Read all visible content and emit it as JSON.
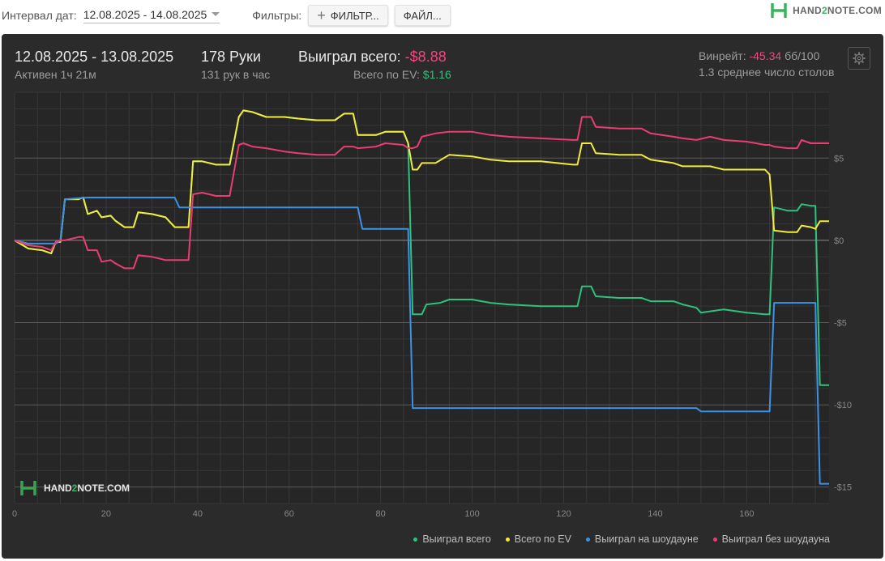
{
  "toolbar": {
    "date_interval_label": "Интервал дат:",
    "date_interval_value": "12.08.2025 - 14.08.2025",
    "filters_label": "Фильтры:",
    "filter_button": "ФИЛЬТР...",
    "file_button": "ФАЙЛ..."
  },
  "logo": {
    "part1": "HAND",
    "part2": "2",
    "part3": "NOTE.COM"
  },
  "summary": {
    "date_range": "12.08.2025 - 13.08.2025",
    "active": "Активен 1ч 21м",
    "hands": "178 Руки",
    "hands_per_hour": "131 рук в час",
    "won_total_label": "Выиграл всего:",
    "won_total_value": "-$8.88",
    "ev_label": "Всего по EV:",
    "ev_value": "$1.16",
    "winrate_label": "Винрейт:",
    "winrate_value": "-45.34",
    "winrate_unit": "бб/100",
    "avg_tables": "1.3 среднее число столов"
  },
  "watermark": {
    "part1": "HAND",
    "part2": "2",
    "part3": "NOTE.COM"
  },
  "colors": {
    "green": "#2ec27e",
    "yellow": "#f2ea3c",
    "blue": "#3b92e6",
    "pink": "#ea3d72"
  },
  "chart_data": {
    "type": "line",
    "xlabel": "",
    "ylabel": "",
    "xlim": [
      0,
      178
    ],
    "ylim": [
      -16,
      9
    ],
    "x_ticks": [
      0,
      20,
      40,
      60,
      80,
      100,
      120,
      140,
      160
    ],
    "y_ticks": [
      5,
      0,
      -5,
      -10,
      -15
    ],
    "y_tick_labels": [
      "$5",
      "$0",
      "-$5",
      "-$10",
      "-$15"
    ],
    "grid": true,
    "legend_position": "bottom-right",
    "series": [
      {
        "name": "Выиграл всего",
        "color": "#2ec27e",
        "points": [
          [
            0,
            0
          ],
          [
            3,
            -0.5
          ],
          [
            6,
            -0.6
          ],
          [
            8,
            -0.8
          ],
          [
            9,
            -0.1
          ],
          [
            10,
            -0.1
          ],
          [
            11,
            2.5
          ],
          [
            14,
            2.5
          ],
          [
            15,
            2.6
          ],
          [
            16,
            1.6
          ],
          [
            18,
            1.8
          ],
          [
            19,
            1.4
          ],
          [
            21,
            1.5
          ],
          [
            22,
            1.2
          ],
          [
            24,
            0.8
          ],
          [
            26,
            0.8
          ],
          [
            27,
            1.7
          ],
          [
            30,
            1.6
          ],
          [
            33,
            1.4
          ],
          [
            35,
            0.8
          ],
          [
            38,
            0.8
          ],
          [
            39,
            4.8
          ],
          [
            41,
            4.8
          ],
          [
            44,
            4.6
          ],
          [
            47,
            4.6
          ],
          [
            49,
            7.5
          ],
          [
            50,
            7.9
          ],
          [
            52,
            7.8
          ],
          [
            55,
            7.5
          ],
          [
            59,
            7.5
          ],
          [
            62,
            7.4
          ],
          [
            66,
            7.3
          ],
          [
            70,
            7.3
          ],
          [
            72,
            7.7
          ],
          [
            74,
            7.7
          ],
          [
            75,
            6.4
          ],
          [
            79,
            6.4
          ],
          [
            81,
            6.6
          ],
          [
            85,
            6.6
          ],
          [
            86,
            5.9
          ],
          [
            87,
            -4.5
          ],
          [
            89,
            -4.5
          ],
          [
            90,
            -3.9
          ],
          [
            93,
            -3.8
          ],
          [
            95,
            -3.6
          ],
          [
            100,
            -3.6
          ],
          [
            104,
            -3.8
          ],
          [
            108,
            -3.9
          ],
          [
            115,
            -4.0
          ],
          [
            122,
            -4.0
          ],
          [
            123,
            -4.0
          ],
          [
            124,
            -2.8
          ],
          [
            126,
            -2.8
          ],
          [
            127,
            -3.4
          ],
          [
            132,
            -3.5
          ],
          [
            137,
            -3.5
          ],
          [
            139,
            -3.7
          ],
          [
            144,
            -3.7
          ],
          [
            146,
            -3.9
          ],
          [
            149,
            -4.1
          ],
          [
            150,
            -4.4
          ],
          [
            155,
            -4.2
          ],
          [
            160,
            -4.4
          ],
          [
            164,
            -4.5
          ],
          [
            165,
            -4.5
          ],
          [
            166,
            2.0
          ],
          [
            169,
            1.8
          ],
          [
            171,
            1.8
          ],
          [
            172,
            2.2
          ],
          [
            174,
            2.1
          ],
          [
            175,
            2.1
          ],
          [
            176,
            -8.8
          ],
          [
            178,
            -8.8
          ]
        ]
      },
      {
        "name": "Всего по EV",
        "color": "#f2ea3c",
        "points": [
          [
            0,
            0
          ],
          [
            3,
            -0.5
          ],
          [
            6,
            -0.6
          ],
          [
            8,
            -0.8
          ],
          [
            9,
            -0.1
          ],
          [
            10,
            -0.1
          ],
          [
            11,
            2.5
          ],
          [
            14,
            2.5
          ],
          [
            15,
            2.6
          ],
          [
            16,
            1.6
          ],
          [
            18,
            1.8
          ],
          [
            19,
            1.4
          ],
          [
            21,
            1.5
          ],
          [
            22,
            1.2
          ],
          [
            24,
            0.8
          ],
          [
            26,
            0.8
          ],
          [
            27,
            1.7
          ],
          [
            30,
            1.6
          ],
          [
            33,
            1.4
          ],
          [
            35,
            0.8
          ],
          [
            38,
            0.8
          ],
          [
            39,
            4.8
          ],
          [
            41,
            4.8
          ],
          [
            44,
            4.6
          ],
          [
            47,
            4.6
          ],
          [
            49,
            7.5
          ],
          [
            50,
            7.9
          ],
          [
            52,
            7.8
          ],
          [
            55,
            7.5
          ],
          [
            59,
            7.5
          ],
          [
            62,
            7.4
          ],
          [
            66,
            7.3
          ],
          [
            70,
            7.3
          ],
          [
            72,
            7.7
          ],
          [
            74,
            7.7
          ],
          [
            75,
            6.4
          ],
          [
            79,
            6.4
          ],
          [
            81,
            6.6
          ],
          [
            85,
            6.6
          ],
          [
            86,
            5.9
          ],
          [
            87,
            4.3
          ],
          [
            88,
            4.3
          ],
          [
            89,
            4.7
          ],
          [
            92,
            4.7
          ],
          [
            95,
            5.2
          ],
          [
            100,
            5.1
          ],
          [
            104,
            4.9
          ],
          [
            108,
            4.8
          ],
          [
            115,
            4.8
          ],
          [
            122,
            4.6
          ],
          [
            123,
            4.6
          ],
          [
            124,
            5.9
          ],
          [
            126,
            5.9
          ],
          [
            127,
            5.3
          ],
          [
            132,
            5.2
          ],
          [
            137,
            5.2
          ],
          [
            139,
            4.9
          ],
          [
            144,
            4.7
          ],
          [
            146,
            4.5
          ],
          [
            149,
            4.5
          ],
          [
            152,
            4.5
          ],
          [
            155,
            4.3
          ],
          [
            160,
            4.3
          ],
          [
            164,
            4.3
          ],
          [
            165,
            4.0
          ],
          [
            166,
            0.6
          ],
          [
            169,
            0.5
          ],
          [
            171,
            0.5
          ],
          [
            172,
            0.9
          ],
          [
            174,
            0.8
          ],
          [
            175,
            0.7
          ],
          [
            176,
            1.16
          ],
          [
            178,
            1.16
          ]
        ]
      },
      {
        "name": "Выиграл на шоудауне",
        "color": "#3b92e6",
        "points": [
          [
            0,
            0
          ],
          [
            3,
            -0.2
          ],
          [
            9,
            -0.2
          ],
          [
            10,
            0
          ],
          [
            11,
            2.5
          ],
          [
            16,
            2.6
          ],
          [
            35,
            2.6
          ],
          [
            36,
            2.0
          ],
          [
            75,
            2.0
          ],
          [
            76,
            0.7
          ],
          [
            86,
            0.7
          ],
          [
            87,
            -10.2
          ],
          [
            149,
            -10.2
          ],
          [
            150,
            -10.4
          ],
          [
            165,
            -10.4
          ],
          [
            166,
            -3.8
          ],
          [
            175,
            -3.8
          ],
          [
            176,
            -14.8
          ],
          [
            178,
            -14.8
          ]
        ]
      },
      {
        "name": "Выиграл без шоудауна",
        "color": "#ea3d72",
        "points": [
          [
            0,
            0
          ],
          [
            3,
            -0.3
          ],
          [
            6,
            -0.4
          ],
          [
            8,
            -0.6
          ],
          [
            9,
            -0.1
          ],
          [
            10,
            0
          ],
          [
            11,
            0
          ],
          [
            14,
            0.2
          ],
          [
            15,
            0.2
          ],
          [
            16,
            -0.6
          ],
          [
            18,
            -0.6
          ],
          [
            19,
            -1.3
          ],
          [
            21,
            -1.2
          ],
          [
            22,
            -1.4
          ],
          [
            24,
            -1.7
          ],
          [
            26,
            -1.7
          ],
          [
            27,
            -0.9
          ],
          [
            30,
            -1.0
          ],
          [
            33,
            -1.2
          ],
          [
            35,
            -1.2
          ],
          [
            38,
            -1.2
          ],
          [
            39,
            2.8
          ],
          [
            41,
            2.9
          ],
          [
            44,
            2.7
          ],
          [
            47,
            2.7
          ],
          [
            49,
            5.8
          ],
          [
            50,
            5.9
          ],
          [
            52,
            5.7
          ],
          [
            55,
            5.6
          ],
          [
            59,
            5.4
          ],
          [
            62,
            5.3
          ],
          [
            66,
            5.2
          ],
          [
            70,
            5.2
          ],
          [
            72,
            5.7
          ],
          [
            74,
            5.7
          ],
          [
            75,
            5.6
          ],
          [
            79,
            5.7
          ],
          [
            81,
            5.9
          ],
          [
            85,
            5.8
          ],
          [
            86,
            5.6
          ],
          [
            87,
            5.6
          ],
          [
            88,
            5.7
          ],
          [
            89,
            6.3
          ],
          [
            92,
            6.5
          ],
          [
            95,
            6.6
          ],
          [
            100,
            6.6
          ],
          [
            104,
            6.4
          ],
          [
            108,
            6.3
          ],
          [
            115,
            6.2
          ],
          [
            122,
            6.1
          ],
          [
            123,
            6.1
          ],
          [
            124,
            7.5
          ],
          [
            126,
            7.5
          ],
          [
            127,
            6.9
          ],
          [
            132,
            6.8
          ],
          [
            137,
            6.8
          ],
          [
            139,
            6.5
          ],
          [
            144,
            6.3
          ],
          [
            146,
            6.2
          ],
          [
            149,
            6.1
          ],
          [
            152,
            6.3
          ],
          [
            155,
            6.1
          ],
          [
            160,
            6.0
          ],
          [
            164,
            5.8
          ],
          [
            165,
            5.8
          ],
          [
            166,
            5.7
          ],
          [
            169,
            5.6
          ],
          [
            171,
            5.6
          ],
          [
            172,
            6.1
          ],
          [
            174,
            5.9
          ],
          [
            175,
            5.9
          ],
          [
            176,
            5.9
          ],
          [
            178,
            5.9
          ]
        ]
      }
    ]
  }
}
